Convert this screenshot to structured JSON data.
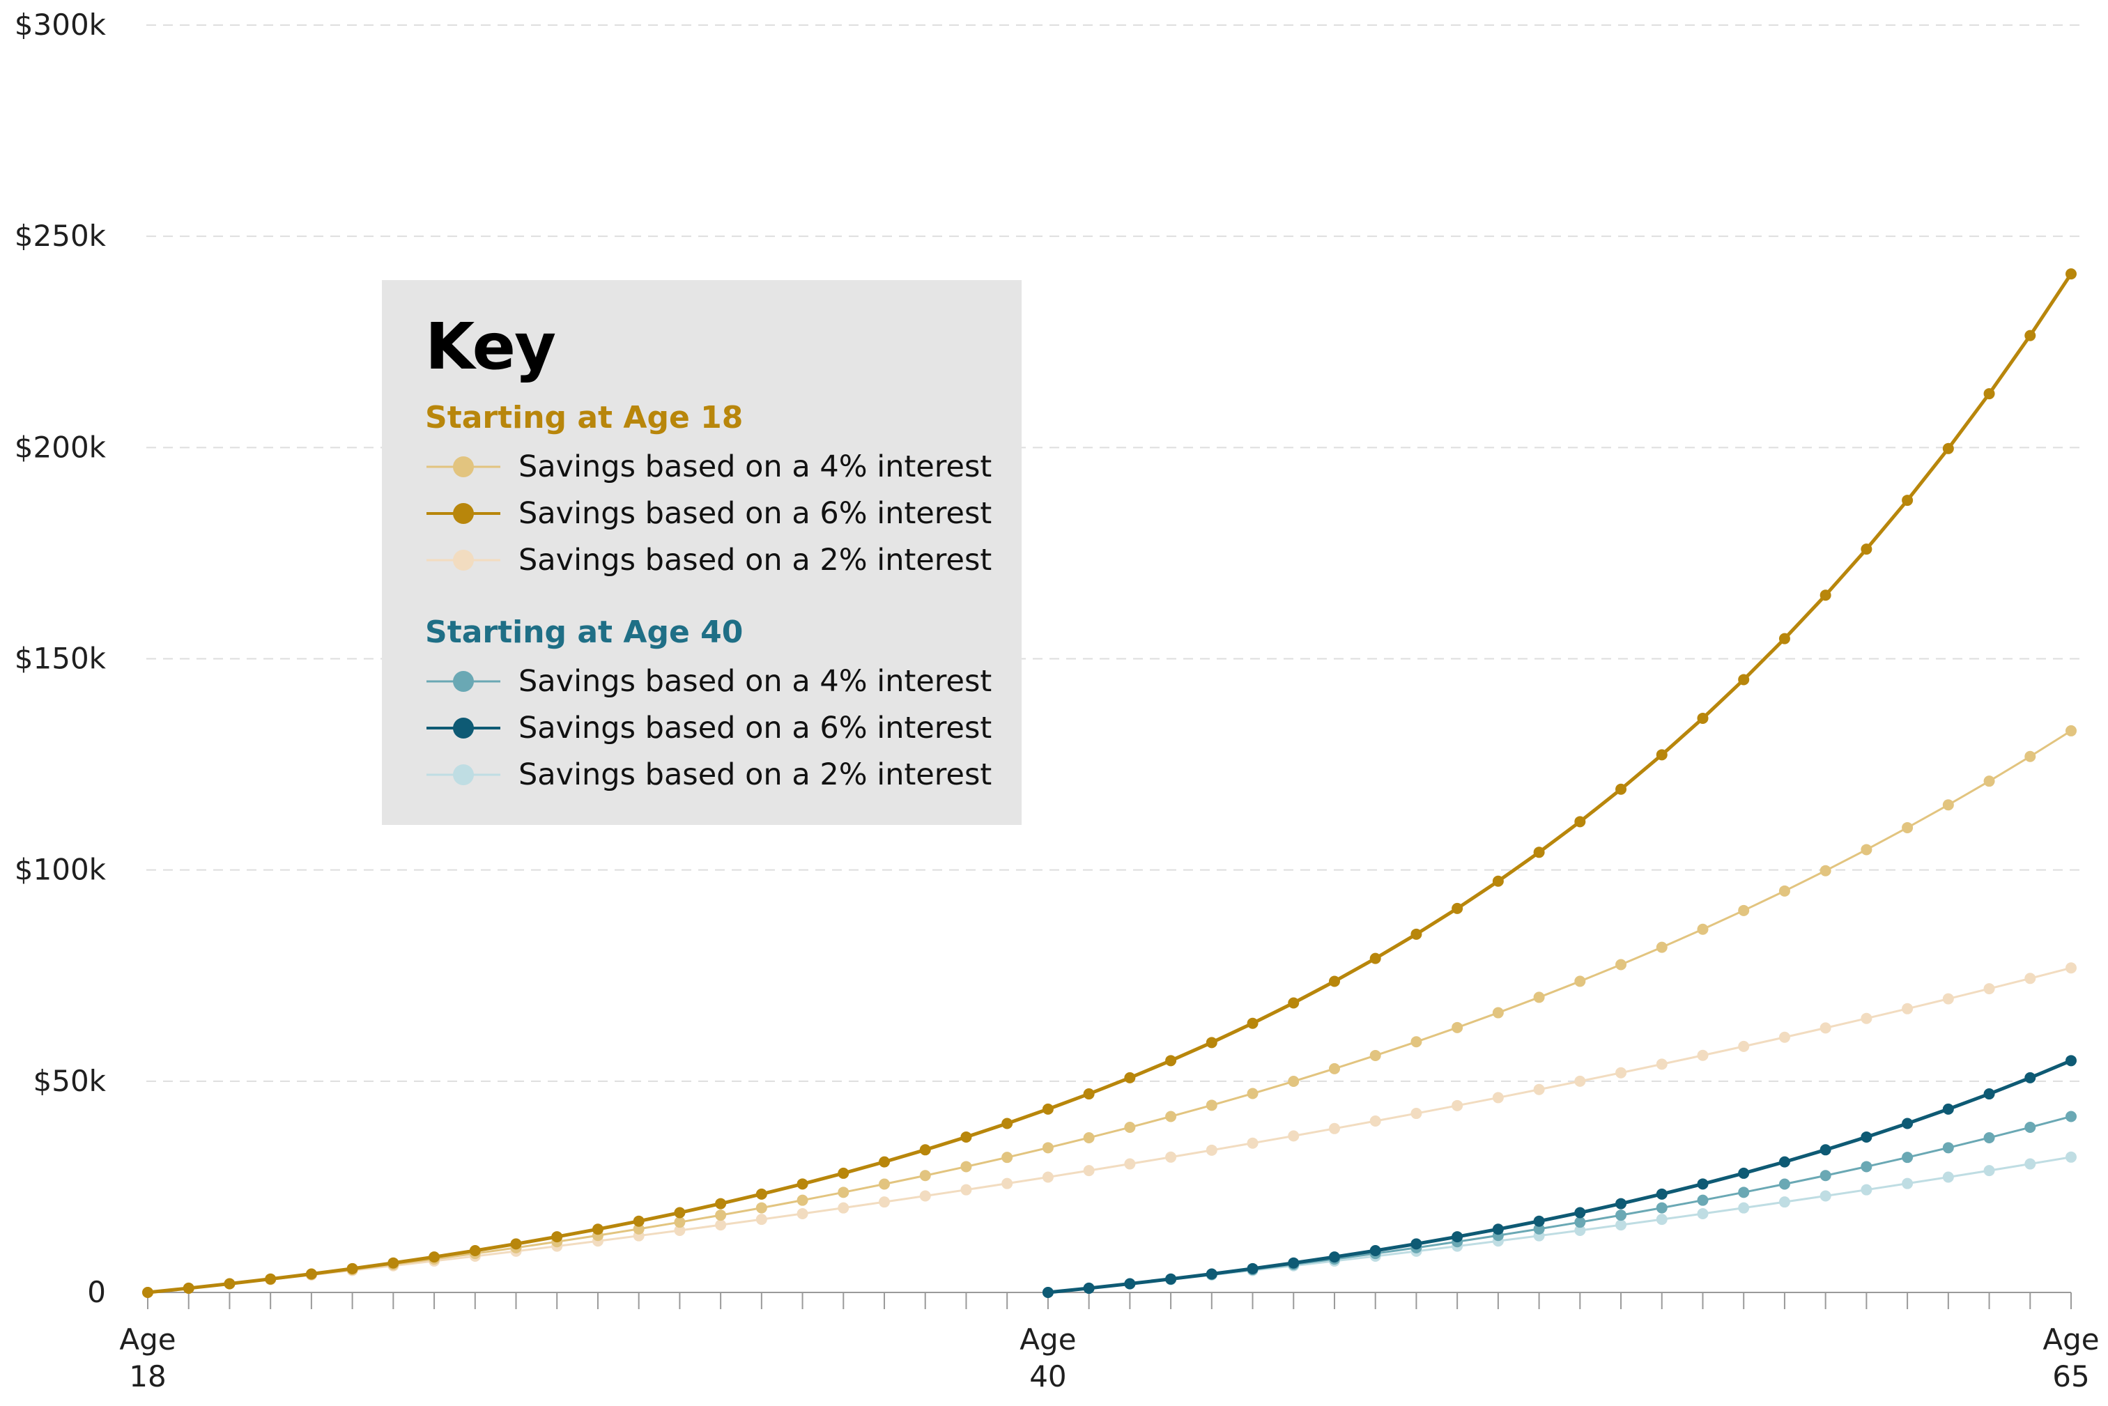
{
  "chart_data": {
    "type": "line",
    "x": [
      18,
      19,
      20,
      21,
      22,
      23,
      24,
      25,
      26,
      27,
      28,
      29,
      30,
      31,
      32,
      33,
      34,
      35,
      36,
      37,
      38,
      39,
      40,
      41,
      42,
      43,
      44,
      45,
      46,
      47,
      48,
      49,
      50,
      51,
      52,
      53,
      54,
      55,
      56,
      57,
      58,
      59,
      60,
      61,
      62,
      63,
      64,
      65
    ],
    "x_tick_labels": [
      {
        "x": 18,
        "line1": "Age",
        "line2": "18"
      },
      {
        "x": 40,
        "line1": "Age",
        "line2": "40"
      },
      {
        "x": 65,
        "line1": "Age",
        "line2": "65"
      }
    ],
    "y_ticks": [
      {
        "value": 0,
        "label": "0"
      },
      {
        "value": 50000,
        "label": "$50k"
      },
      {
        "value": 100000,
        "label": "$100k"
      },
      {
        "value": 150000,
        "label": "$150k"
      },
      {
        "value": 200000,
        "label": "$200k"
      },
      {
        "value": 250000,
        "label": "$250k"
      },
      {
        "value": 300000,
        "label": "$300k"
      }
    ],
    "ylim": [
      0,
      300000
    ],
    "xlim": [
      18,
      65
    ],
    "grid": "horizontal dashed",
    "annual_contribution_approx": 1000,
    "series": [
      {
        "group": "age18",
        "name": "Savings based on a 4% interest",
        "start_age": 18,
        "rate": 0.04,
        "color": "#e2c47f",
        "stroke": 3,
        "dot": 8
      },
      {
        "group": "age18",
        "name": "Savings based on a 6% interest",
        "start_age": 18,
        "rate": 0.06,
        "color": "#b8860b",
        "stroke": 5,
        "dot": 8
      },
      {
        "group": "age18",
        "name": "Savings based on a 2% interest",
        "start_age": 18,
        "rate": 0.02,
        "color": "#f2dcc0",
        "stroke": 3,
        "dot": 8
      },
      {
        "group": "age40",
        "name": "Savings based on a 4% interest",
        "start_age": 40,
        "rate": 0.04,
        "color": "#6aa8b4",
        "stroke": 3,
        "dot": 8
      },
      {
        "group": "age40",
        "name": "Savings based on a 6% interest",
        "start_age": 40,
        "rate": 0.06,
        "color": "#0e5a74",
        "stroke": 5,
        "dot": 8
      },
      {
        "group": "age40",
        "name": "Savings based on a 2% interest",
        "start_age": 40,
        "rate": 0.02,
        "color": "#bfdde3",
        "stroke": 3,
        "dot": 8
      }
    ]
  },
  "legend": {
    "title": "Key",
    "group1": {
      "title": "Starting at Age 18",
      "color": "#b8860b"
    },
    "group2": {
      "title": "Starting at Age 40",
      "color": "#1f6f86"
    },
    "items": [
      {
        "label": "Savings based on a 4% interest",
        "color": "#e2c47f"
      },
      {
        "label": "Savings based on a 6% interest",
        "color": "#b8860b"
      },
      {
        "label": "Savings based on a 2% interest",
        "color": "#f2dcc0"
      },
      {
        "label": "Savings based on a 4% interest",
        "color": "#6aa8b4"
      },
      {
        "label": "Savings based on a 6% interest",
        "color": "#0e5a74"
      },
      {
        "label": "Savings based on a 2% interest",
        "color": "#bfdde3"
      }
    ]
  }
}
